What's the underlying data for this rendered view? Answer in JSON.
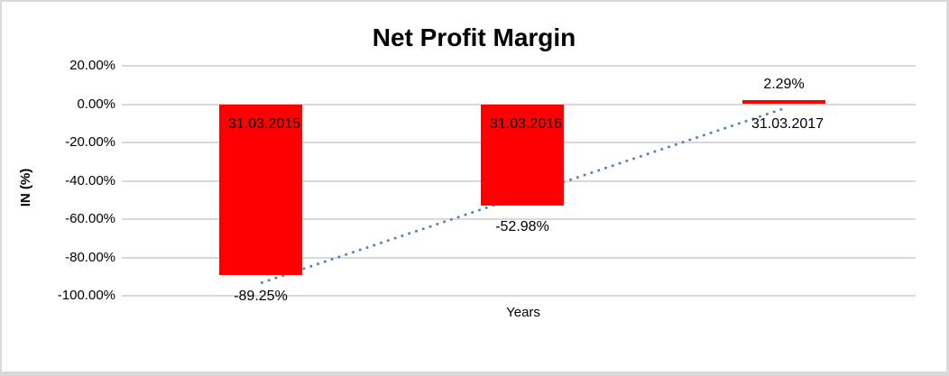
{
  "chart_data": {
    "type": "bar",
    "title": "Net Profit Margin",
    "xlabel": "Years",
    "ylabel": "IN (%)",
    "categories": [
      "31.03.2015",
      "31.03.2016",
      "31.03.2017"
    ],
    "series": [
      {
        "name": "Net Profit Margin",
        "values": [
          -89.25,
          -52.98,
          2.29
        ]
      }
    ],
    "value_labels": [
      "-89.25%",
      "-52.98%",
      "2.29%"
    ],
    "yticks": [
      20,
      0,
      -20,
      -40,
      -60,
      -80,
      -100
    ],
    "ytick_labels": [
      "20.00%",
      "0.00%",
      "-20.00%",
      "-40.00%",
      "-60.00%",
      "-80.00%",
      "-100.00%"
    ],
    "ylim": [
      -100,
      20
    ],
    "grid": true,
    "legend": false,
    "colors": {
      "bar": "#FF0000",
      "trendline": "#4F81BD",
      "gridline": "#D9D9D9",
      "text": "#000000",
      "border": "#D9D9D9"
    },
    "trendline": {
      "type": "linear",
      "style": "dotted"
    }
  }
}
